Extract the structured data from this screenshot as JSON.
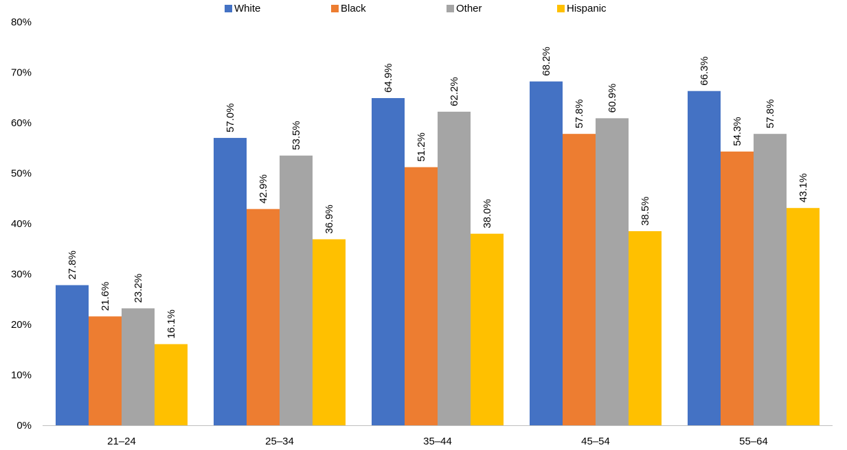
{
  "chart_data": {
    "type": "bar",
    "categories": [
      "21–24",
      "25–34",
      "35–44",
      "45–54",
      "55–64"
    ],
    "series": [
      {
        "name": "White",
        "color": "#4472C4",
        "values": [
          27.8,
          57.0,
          64.9,
          68.2,
          66.3
        ]
      },
      {
        "name": "Black",
        "color": "#ED7D31",
        "values": [
          21.6,
          42.9,
          51.2,
          57.8,
          54.3
        ]
      },
      {
        "name": "Other",
        "color": "#A5A5A5",
        "values": [
          23.2,
          53.5,
          62.2,
          60.9,
          57.8
        ]
      },
      {
        "name": "Hispanic",
        "color": "#FFC000",
        "values": [
          16.1,
          36.9,
          38.0,
          38.5,
          43.1
        ]
      }
    ],
    "data_labels": [
      [
        "27.8%",
        "57.0%",
        "64.9%",
        "68.2%",
        "66.3%"
      ],
      [
        "21.6%",
        "42.9%",
        "51.2%",
        "57.8%",
        "54.3%"
      ],
      [
        "23.2%",
        "53.5%",
        "62.2%",
        "60.9%",
        "57.8%"
      ],
      [
        "16.1%",
        "36.9%",
        "38.0%",
        "38.5%",
        "43.1%"
      ]
    ],
    "y_ticks": [
      "0%",
      "10%",
      "20%",
      "30%",
      "40%",
      "50%",
      "60%",
      "70%",
      "80%"
    ],
    "ylim": [
      0,
      80
    ],
    "grid": false,
    "legend_position": "top"
  }
}
